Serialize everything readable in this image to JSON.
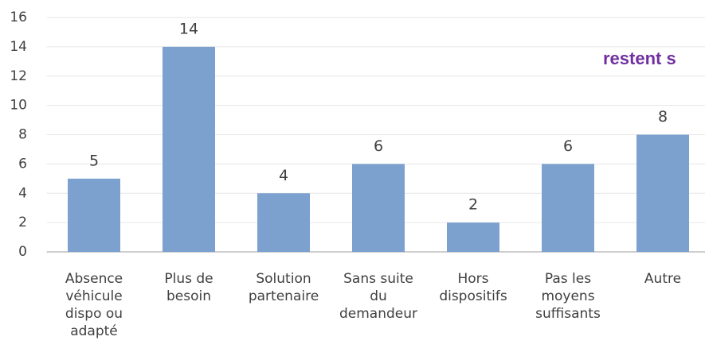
{
  "chart_data": {
    "type": "bar",
    "annotation": "restent s",
    "categories": [
      [
        "Absence",
        "véhicule",
        "dispo ou",
        "adapté"
      ],
      [
        "Plus de",
        "besoin"
      ],
      [
        "Solution",
        "partenaire"
      ],
      [
        "Sans suite",
        "du",
        "demandeur"
      ],
      [
        "Hors",
        "dispositifs"
      ],
      [
        "Pas les",
        "moyens",
        "suffisants"
      ],
      [
        "Autre"
      ]
    ],
    "values": [
      5,
      14,
      4,
      6,
      2,
      6,
      8
    ],
    "color": "#7ca1cf",
    "ylim": [
      0,
      16
    ],
    "yticks": [
      0,
      2,
      4,
      6,
      8,
      10,
      12,
      14,
      16
    ],
    "grid": true
  }
}
